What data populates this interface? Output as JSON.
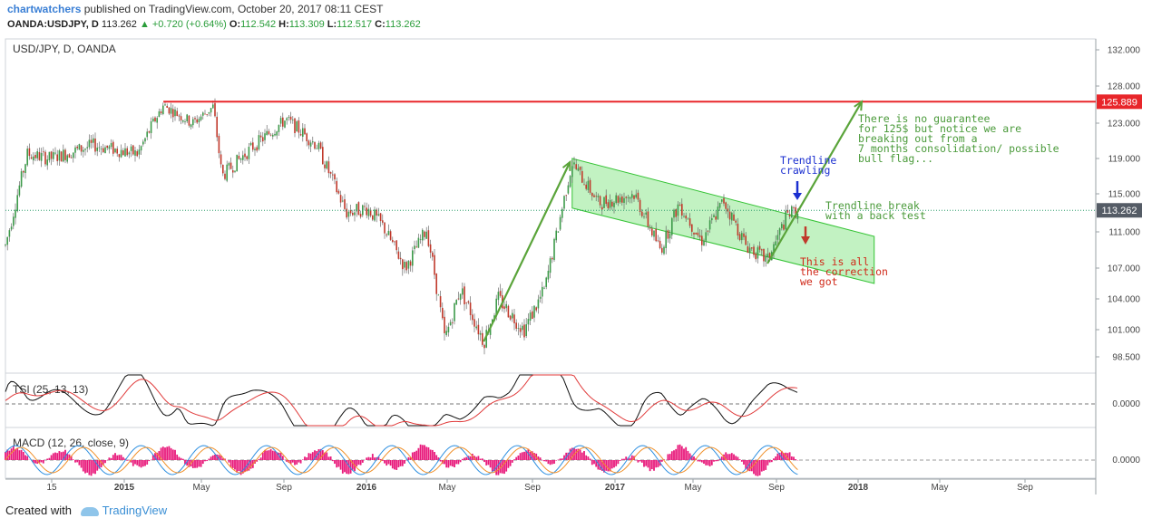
{
  "header": {
    "user": "chartwatchers",
    "published": "published on TradingView.com, October 20, 2017 08:11 CEST",
    "symbol": "OANDA:USDJPY, D",
    "last": "113.262",
    "change": "▲ +0.720 (+0.64%)",
    "o_label": "O:",
    "o": "112.542",
    "h_label": "H:",
    "h": "113.309",
    "l_label": "L:",
    "l": "112.517",
    "c_label": "C:",
    "c": "113.262"
  },
  "footer": {
    "created_with": "Created with",
    "brand": "TradingView"
  },
  "colors": {
    "up": "#3d9a4a",
    "down": "#c0392b",
    "resistance": "#e8262a",
    "channel": "#35c335",
    "price_tag": "#555c66"
  },
  "chart_data": [
    {
      "type": "candlestick",
      "title": "USD/JPY, D, OANDA",
      "y_ticks": [
        "132.000",
        "128.000",
        "123.000",
        "119.000",
        "115.000",
        "111.000",
        "107.000",
        "104.000",
        "101.000",
        "98.500"
      ],
      "y_tick_values": [
        132,
        128,
        123,
        119,
        115,
        111,
        107,
        104,
        101,
        98.5
      ],
      "x_ticks": [
        {
          "label": "15",
          "bold": false
        },
        {
          "label": "2015",
          "bold": true
        },
        {
          "label": "May",
          "bold": false
        },
        {
          "label": "Sep",
          "bold": false
        },
        {
          "label": "2016",
          "bold": true
        },
        {
          "label": "May",
          "bold": false
        },
        {
          "label": "Sep",
          "bold": false
        },
        {
          "label": "2017",
          "bold": true
        },
        {
          "label": "May",
          "bold": false
        },
        {
          "label": "Sep",
          "bold": false
        },
        {
          "label": "2018",
          "bold": true
        },
        {
          "label": "May",
          "bold": false
        },
        {
          "label": "Sep",
          "bold": false
        }
      ],
      "price_path": [
        [
          "2014-11-01",
          109.5
        ],
        [
          "2014-12-01",
          119.5
        ],
        [
          "2015-01-01",
          119.0
        ],
        [
          "2015-03-01",
          120.5
        ],
        [
          "2015-05-01",
          119.5
        ],
        [
          "2015-06-05",
          125.4
        ],
        [
          "2015-07-15",
          123.0
        ],
        [
          "2015-08-12",
          125.2
        ],
        [
          "2015-08-24",
          117.0
        ],
        [
          "2015-10-01",
          120.0
        ],
        [
          "2015-11-20",
          123.5
        ],
        [
          "2016-01-01",
          120.5
        ],
        [
          "2016-02-10",
          113.0
        ],
        [
          "2016-03-10",
          113.5
        ],
        [
          "2016-04-01",
          111.5
        ],
        [
          "2016-05-01",
          107.0
        ],
        [
          "2016-05-30",
          111.3
        ],
        [
          "2016-06-24",
          100.0
        ],
        [
          "2016-07-15",
          105.0
        ],
        [
          "2016-08-16",
          99.9
        ],
        [
          "2016-09-05",
          104.0
        ],
        [
          "2016-10-10",
          101.0
        ],
        [
          "2016-11-08",
          105.0
        ],
        [
          "2016-12-15",
          118.5
        ],
        [
          "2017-01-20",
          114.0
        ],
        [
          "2017-03-10",
          115.0
        ],
        [
          "2017-04-15",
          109.0
        ],
        [
          "2017-05-10",
          114.0
        ],
        [
          "2017-06-10",
          110.0
        ],
        [
          "2017-07-10",
          114.3
        ],
        [
          "2017-08-10",
          109.5
        ],
        [
          "2017-09-08",
          107.8
        ],
        [
          "2017-10-05",
          112.8
        ],
        [
          "2017-10-20",
          113.26
        ]
      ],
      "resistance": {
        "value": 125.889,
        "label": "125.889",
        "start": "2015-06-05"
      },
      "last_price": {
        "value": 113.262,
        "label": "113.262"
      },
      "channel": {
        "upper_start": [
          "2016-12-15",
          119.0
        ],
        "upper_end": [
          "2018-02-01",
          110.5
        ],
        "lower_start": [
          "2016-12-15",
          113.5
        ],
        "lower_end": [
          "2018-02-01",
          105.5
        ]
      },
      "arrows": [
        {
          "from": [
            "2016-08-16",
            99.9
          ],
          "to": [
            "2016-12-12",
            118.6
          ],
          "color": "#5aa43a"
        },
        {
          "from": [
            "2017-09-08",
            107.5
          ],
          "to": [
            "2018-01-15",
            125.9
          ],
          "color": "#5aa43a"
        }
      ],
      "annotations": [
        {
          "lines": [
            "There is no guarantee",
            "for 125$ but notice we are",
            "breaking out from a",
            "7 months consolidation/ possible",
            "bull flag..."
          ],
          "color": "#4a9a3a"
        },
        {
          "lines": [
            "Trendline",
            "crawling"
          ],
          "color": "#1b2fd0"
        },
        {
          "lines": [
            "Trendline break",
            "with a back test"
          ],
          "color": "#4a9a3a"
        },
        {
          "lines": [
            "This is all",
            "the correction",
            "we got"
          ],
          "color": "#d02a1a"
        }
      ]
    },
    {
      "type": "line",
      "title": "TSI (25, 13, 13)",
      "y_ticks": [
        "0.0000"
      ],
      "series": [
        {
          "color": "#111111"
        },
        {
          "color": "#e03a3a"
        }
      ]
    },
    {
      "type": "bar",
      "title": "MACD (12, 26, close, 9)",
      "y_ticks": [
        "0.0000"
      ],
      "series": [
        {
          "color": "#e8187a"
        },
        {
          "color": "#2d8fe0"
        },
        {
          "color": "#f0902a"
        }
      ]
    }
  ]
}
